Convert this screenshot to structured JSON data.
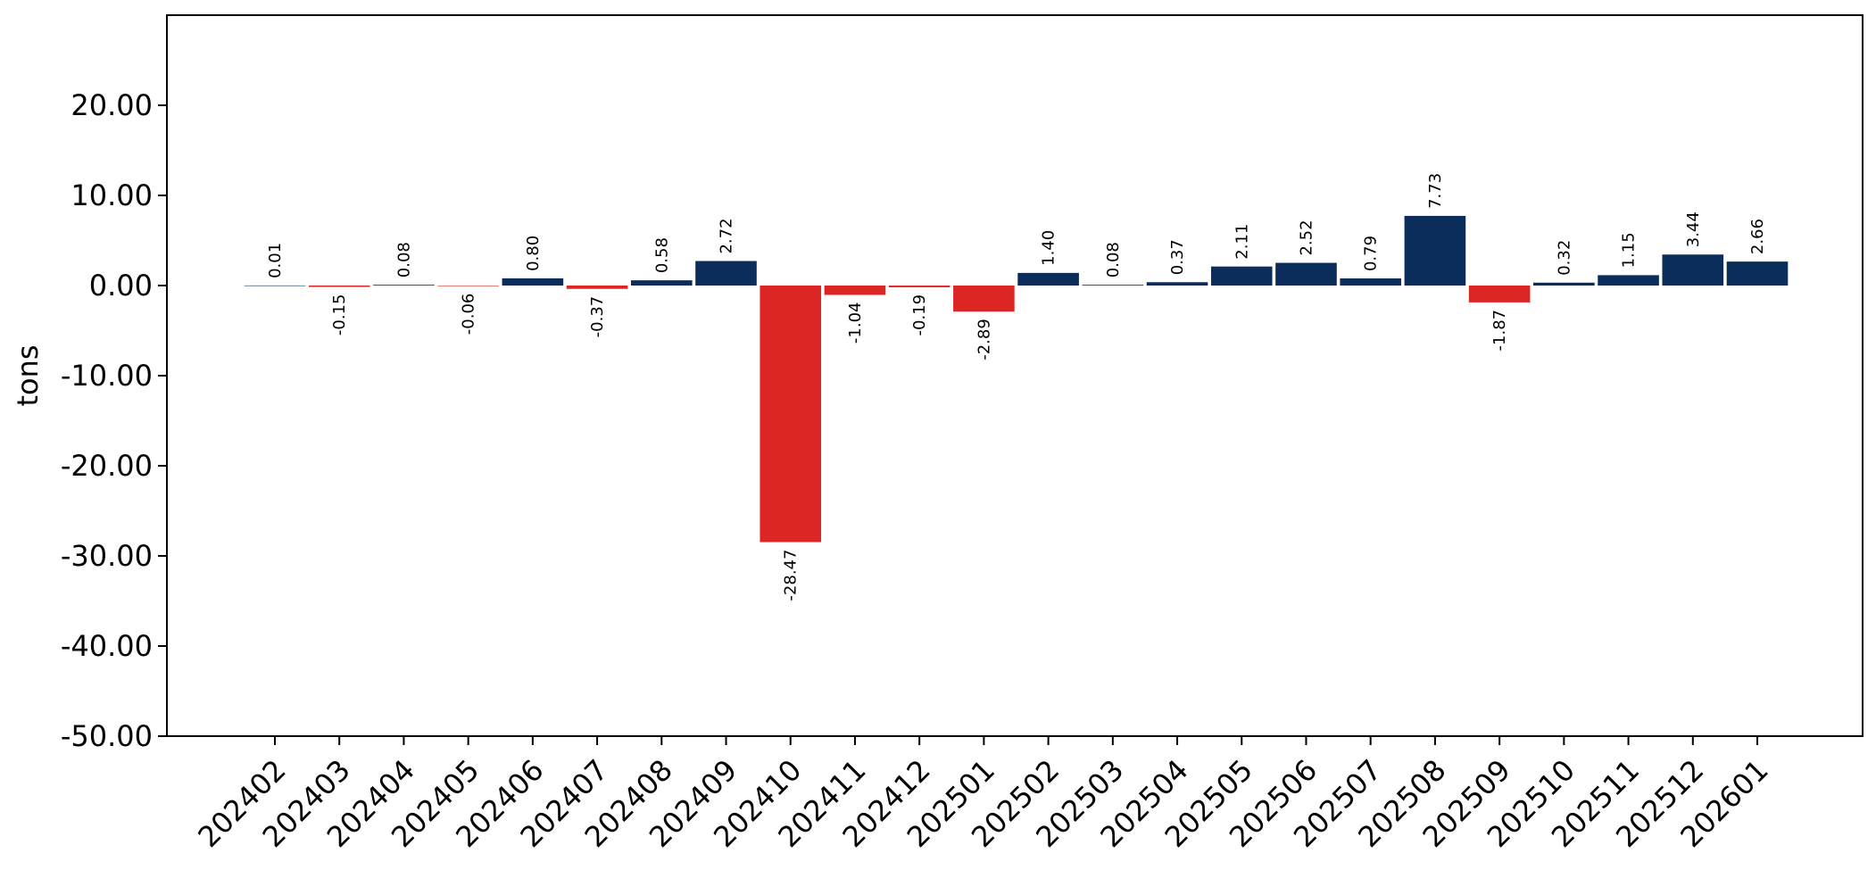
{
  "chart_data": {
    "type": "bar",
    "title": "",
    "xlabel": "",
    "ylabel": "tons",
    "ylim": [
      -50,
      30
    ],
    "yticks": [
      -50,
      -40,
      -30,
      -20,
      -10,
      0,
      10,
      20
    ],
    "ytick_labels": [
      "-50.00",
      "-40.00",
      "-30.00",
      "-20.00",
      "-10.00",
      "0.00",
      "10.00",
      "20.00"
    ],
    "grid": false,
    "legend": "none",
    "categories": [
      "202402",
      "202403",
      "202404",
      "202405",
      "202406",
      "202407",
      "202408",
      "202409",
      "202410",
      "202411",
      "202412",
      "202501",
      "202502",
      "202503",
      "202504",
      "202505",
      "202506",
      "202507",
      "202508",
      "202509",
      "202510",
      "202511",
      "202512",
      "202601"
    ],
    "values": [
      0.01,
      -0.15,
      0.08,
      -0.06,
      0.8,
      -0.37,
      0.58,
      2.72,
      -28.47,
      -1.04,
      -0.19,
      -2.89,
      1.4,
      0.08,
      0.37,
      2.11,
      2.52,
      0.79,
      7.73,
      -1.87,
      0.32,
      1.15,
      3.44,
      2.66
    ],
    "value_labels": [
      "0.01",
      "-0.15",
      "0.08",
      "-0.06",
      "0.80",
      "-0.37",
      "0.58",
      "2.72",
      "-28.47",
      "-1.04",
      "-0.19",
      "-2.89",
      "1.40",
      "0.08",
      "0.37",
      "2.11",
      "2.52",
      "0.79",
      "7.73",
      "-1.87",
      "0.32",
      "1.15",
      "3.44",
      "2.66"
    ],
    "colors": {
      "positive": "#0b2d5b",
      "negative": "#dc2626"
    }
  }
}
